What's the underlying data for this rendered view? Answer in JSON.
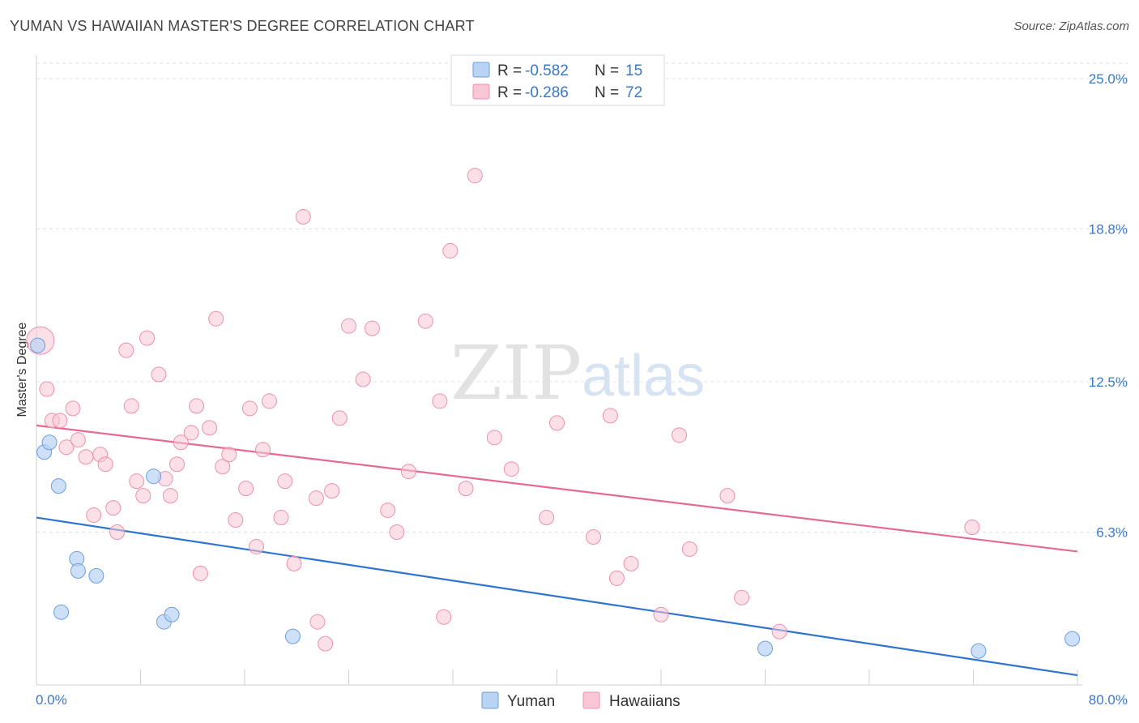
{
  "header": {
    "title": "YUMAN VS HAWAIIAN MASTER'S DEGREE CORRELATION CHART",
    "source": "Source: ZipAtlas.com"
  },
  "watermark": {
    "zip": "ZIP",
    "atlas": "atlas"
  },
  "colors": {
    "yuman_fill": "#b9d3f3",
    "yuman_stroke": "#6a9fdc",
    "yuman_line": "#2f74d0",
    "hawaiian_fill": "#f9c6d5",
    "hawaiian_stroke": "#ee8fab",
    "hawaiian_line": "#e46a93",
    "accent_text": "#3a78c9"
  },
  "legend": {
    "rows": [
      {
        "r_label": "R = ",
        "r_value": "-0.582",
        "n_label": "N = ",
        "n_value": "15"
      },
      {
        "r_label": "R = ",
        "r_value": "-0.286",
        "n_label": "N = ",
        "n_value": "72"
      }
    ]
  },
  "bottom_legend": {
    "yuman": "Yuman",
    "hawaiians": "Hawaiians"
  },
  "chart_data": {
    "type": "scatter",
    "title": "YUMAN VS HAWAIIAN MASTER'S DEGREE CORRELATION CHART",
    "xlabel": "",
    "ylabel": "Master's Degree",
    "xlim": [
      0,
      80
    ],
    "ylim": [
      0,
      26
    ],
    "x_tick_labels": [
      "0.0%",
      "80.0%"
    ],
    "y_ticks": [
      6.3,
      12.5,
      18.8,
      25.0
    ],
    "y_tick_labels": [
      "6.3%",
      "12.5%",
      "18.8%",
      "25.0%"
    ],
    "grid": true,
    "series": [
      {
        "name": "Yuman",
        "r": -0.582,
        "n": 15,
        "points": [
          [
            0.1,
            14.0
          ],
          [
            0.6,
            9.6
          ],
          [
            1.0,
            10.0
          ],
          [
            1.7,
            8.2
          ],
          [
            1.9,
            3.0
          ],
          [
            3.1,
            5.2
          ],
          [
            3.2,
            4.7
          ],
          [
            4.6,
            4.5
          ],
          [
            9.0,
            8.6
          ],
          [
            9.8,
            2.6
          ],
          [
            10.4,
            2.9
          ],
          [
            19.7,
            2.0
          ],
          [
            56.0,
            1.5
          ],
          [
            72.4,
            1.4
          ],
          [
            79.6,
            1.9
          ]
        ],
        "trend": {
          "x": [
            0,
            80
          ],
          "y": [
            6.9,
            0.4
          ]
        }
      },
      {
        "name": "Hawaiians",
        "r": -0.286,
        "n": 72,
        "points": [
          [
            0.3,
            14.2
          ],
          [
            0.8,
            12.2
          ],
          [
            1.2,
            10.9
          ],
          [
            1.8,
            10.9
          ],
          [
            2.3,
            9.8
          ],
          [
            2.8,
            11.4
          ],
          [
            3.2,
            10.1
          ],
          [
            3.8,
            9.4
          ],
          [
            4.4,
            7.0
          ],
          [
            4.9,
            9.5
          ],
          [
            5.3,
            9.1
          ],
          [
            5.9,
            7.3
          ],
          [
            6.2,
            6.3
          ],
          [
            6.9,
            13.8
          ],
          [
            7.3,
            11.5
          ],
          [
            7.7,
            8.4
          ],
          [
            8.2,
            7.8
          ],
          [
            8.5,
            14.3
          ],
          [
            9.4,
            12.8
          ],
          [
            9.9,
            8.5
          ],
          [
            10.3,
            7.8
          ],
          [
            10.8,
            9.1
          ],
          [
            11.1,
            10.0
          ],
          [
            11.9,
            10.4
          ],
          [
            12.3,
            11.5
          ],
          [
            12.6,
            4.6
          ],
          [
            13.3,
            10.6
          ],
          [
            13.8,
            15.1
          ],
          [
            14.3,
            9.0
          ],
          [
            14.8,
            9.5
          ],
          [
            15.3,
            6.8
          ],
          [
            16.1,
            8.1
          ],
          [
            16.4,
            11.4
          ],
          [
            16.9,
            5.7
          ],
          [
            17.4,
            9.7
          ],
          [
            17.9,
            11.7
          ],
          [
            18.8,
            6.9
          ],
          [
            19.1,
            8.4
          ],
          [
            19.8,
            5.0
          ],
          [
            20.5,
            19.3
          ],
          [
            21.5,
            7.7
          ],
          [
            21.6,
            2.6
          ],
          [
            22.2,
            1.7
          ],
          [
            22.7,
            8.0
          ],
          [
            23.3,
            11.0
          ],
          [
            24.0,
            14.8
          ],
          [
            25.1,
            12.6
          ],
          [
            25.8,
            14.7
          ],
          [
            27.0,
            7.2
          ],
          [
            27.7,
            6.3
          ],
          [
            28.6,
            8.8
          ],
          [
            29.9,
            15.0
          ],
          [
            31.0,
            11.7
          ],
          [
            31.3,
            2.8
          ],
          [
            31.8,
            17.9
          ],
          [
            33.0,
            8.1
          ],
          [
            33.7,
            21.0
          ],
          [
            35.2,
            10.2
          ],
          [
            36.5,
            8.9
          ],
          [
            39.2,
            6.9
          ],
          [
            40.0,
            10.8
          ],
          [
            42.8,
            6.1
          ],
          [
            44.1,
            11.1
          ],
          [
            44.6,
            4.4
          ],
          [
            45.7,
            5.0
          ],
          [
            48.0,
            2.9
          ],
          [
            49.4,
            10.3
          ],
          [
            50.2,
            5.6
          ],
          [
            53.1,
            7.8
          ],
          [
            54.2,
            3.6
          ],
          [
            57.1,
            2.2
          ],
          [
            71.9,
            6.5
          ]
        ],
        "trend": {
          "x": [
            0,
            80
          ],
          "y": [
            10.7,
            5.5
          ]
        }
      }
    ]
  }
}
